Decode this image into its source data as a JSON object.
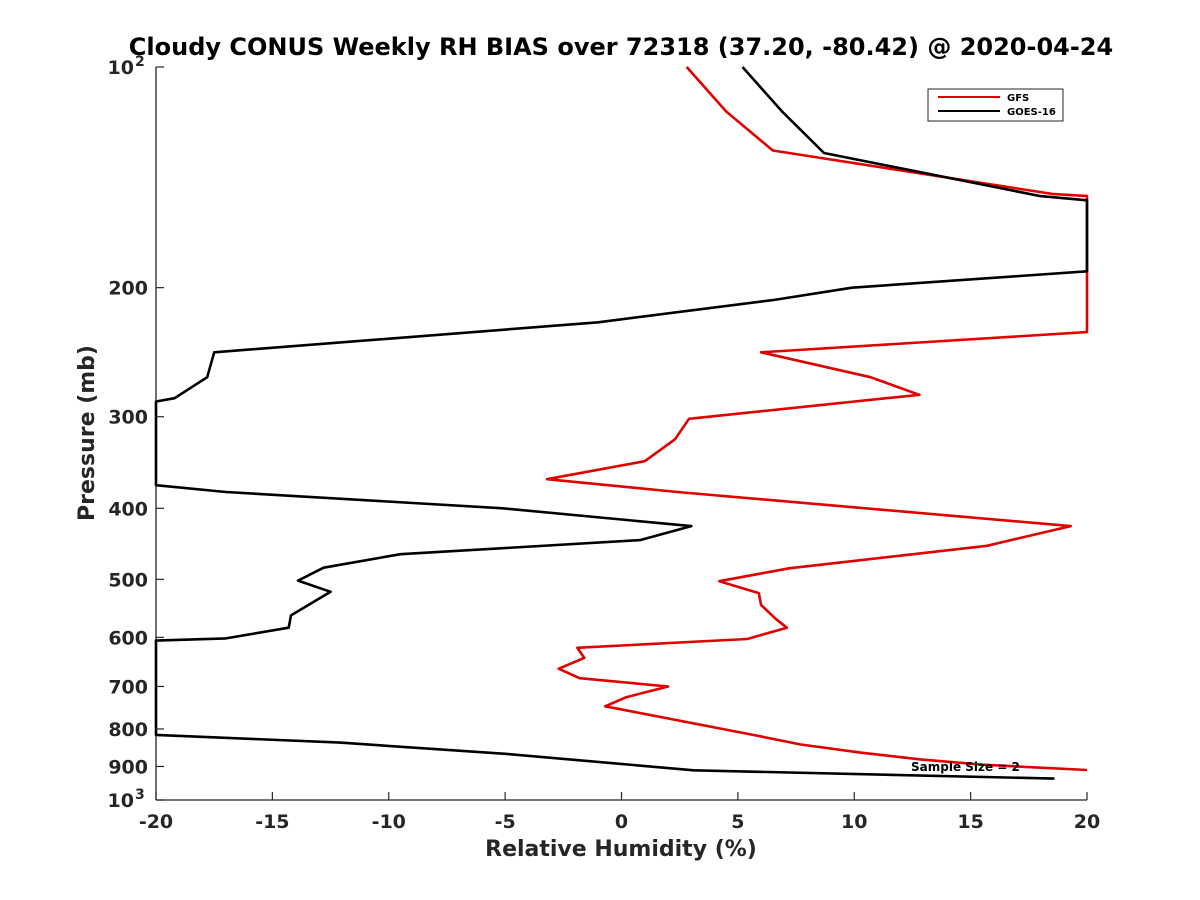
{
  "chart_data": {
    "type": "line",
    "title": "Cloudy CONUS Weekly RH BIAS over 72318 (37.20, -80.42) @ 2020-04-24",
    "xlabel": "Relative Humidity (%)",
    "ylabel": "Pressure (mb)",
    "xlim": [
      -20,
      20
    ],
    "ylim": [
      100,
      1000
    ],
    "y_scale": "log",
    "y_reversed": true,
    "grid": false,
    "legend_position": "top-right",
    "annotation": "Sample Size = 2",
    "x_ticks": [
      "-20",
      "-15",
      "-10",
      "-5",
      "0",
      "5",
      "10",
      "15",
      "20"
    ],
    "y_ticks": [
      {
        "value": 100,
        "base": "10",
        "exp": "2"
      },
      {
        "value": 200,
        "label": "200"
      },
      {
        "value": 300,
        "label": "300"
      },
      {
        "value": 400,
        "label": "400"
      },
      {
        "value": 500,
        "label": "500"
      },
      {
        "value": 600,
        "label": "600"
      },
      {
        "value": 700,
        "label": "700"
      },
      {
        "value": 800,
        "label": "800"
      },
      {
        "value": 900,
        "label": "900"
      },
      {
        "value": 1000,
        "base": "10",
        "exp": "3"
      }
    ],
    "series": [
      {
        "name": "GFS",
        "color": "#e00000",
        "points": [
          [
            2.8,
            100
          ],
          [
            4.5,
            115
          ],
          [
            6.5,
            130
          ],
          [
            18.5,
            149
          ],
          [
            20,
            150
          ],
          [
            20,
            230
          ],
          [
            6.0,
            245
          ],
          [
            10.7,
            265
          ],
          [
            12.8,
            280
          ],
          [
            2.9,
            302
          ],
          [
            2.3,
            322
          ],
          [
            1.0,
            345
          ],
          [
            -3.2,
            365
          ],
          [
            2.4,
            380
          ],
          [
            19.3,
            423
          ],
          [
            15.7,
            450
          ],
          [
            7.2,
            483
          ],
          [
            4.2,
            503
          ],
          [
            5.9,
            522
          ],
          [
            6.0,
            542
          ],
          [
            6.6,
            565
          ],
          [
            7.1,
            582
          ],
          [
            5.4,
            603
          ],
          [
            -1.9,
            620
          ],
          [
            -1.6,
            640
          ],
          [
            -2.7,
            662
          ],
          [
            -1.8,
            682
          ],
          [
            2.0,
            700
          ],
          [
            0.2,
            724
          ],
          [
            -0.7,
            745
          ],
          [
            5.9,
            818
          ],
          [
            7.7,
            840
          ],
          [
            10.3,
            862
          ],
          [
            12.8,
            880
          ],
          [
            15.5,
            895
          ],
          [
            20,
            910
          ]
        ]
      },
      {
        "name": "GOES-16",
        "color": "#000000",
        "points": [
          [
            5.2,
            100
          ],
          [
            6.9,
            115
          ],
          [
            8.7,
            131
          ],
          [
            18.0,
            150
          ],
          [
            20,
            152
          ],
          [
            20,
            190
          ],
          [
            9.9,
            200
          ],
          [
            6.5,
            208
          ],
          [
            -1.0,
            223
          ],
          [
            -17.5,
            245
          ],
          [
            -17.8,
            265
          ],
          [
            -19.2,
            283
          ],
          [
            -20,
            286
          ],
          [
            -20,
            372
          ],
          [
            -17.0,
            380
          ],
          [
            -5.1,
            400
          ],
          [
            3.0,
            423
          ],
          [
            0.8,
            442
          ],
          [
            -9.5,
            462
          ],
          [
            -12.8,
            482
          ],
          [
            -13.9,
            502
          ],
          [
            -12.5,
            520
          ],
          [
            -14.2,
            560
          ],
          [
            -14.3,
            582
          ],
          [
            -17.0,
            602
          ],
          [
            -20,
            606
          ],
          [
            -20,
            815
          ],
          [
            -12.1,
            835
          ],
          [
            -5.0,
            865
          ],
          [
            3.1,
            911
          ],
          [
            18.6,
            935
          ]
        ]
      }
    ]
  }
}
